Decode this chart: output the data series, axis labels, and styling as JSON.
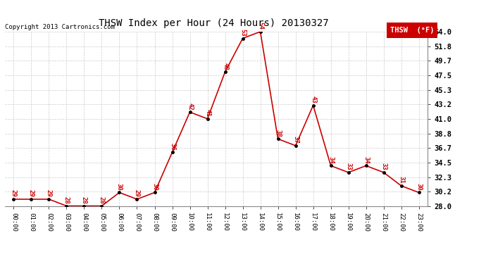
{
  "title": "THSW Index per Hour (24 Hours) 20130327",
  "copyright": "Copyright 2013 Cartronics.com",
  "legend_label": "THSW  (°F)",
  "hours": [
    0,
    1,
    2,
    3,
    4,
    5,
    6,
    7,
    8,
    9,
    10,
    11,
    12,
    13,
    14,
    15,
    16,
    17,
    18,
    19,
    20,
    21,
    22,
    23
  ],
  "values": [
    29,
    29,
    29,
    28,
    28,
    28,
    30,
    29,
    30,
    36,
    42,
    41,
    48,
    53,
    54,
    38,
    37,
    43,
    34,
    33,
    34,
    33,
    31,
    30
  ],
  "ylim": [
    28.0,
    54.0
  ],
  "yticks": [
    28.0,
    30.2,
    32.3,
    34.5,
    36.7,
    38.8,
    41.0,
    43.2,
    45.3,
    47.5,
    49.7,
    51.8,
    54.0
  ],
  "line_color": "#cc0000",
  "marker_color": "#000000",
  "label_color": "#cc0000",
  "bg_color": "#ffffff",
  "grid_color": "#cccccc",
  "title_color": "#000000",
  "legend_bg": "#cc0000",
  "legend_fg": "#ffffff"
}
